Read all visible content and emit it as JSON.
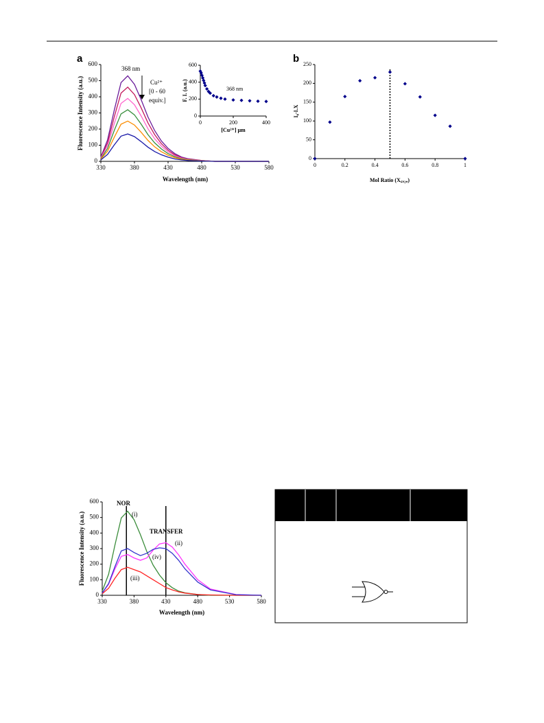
{
  "chart_data": [
    {
      "type": "line",
      "panel_label": "a",
      "ylabel": "Fluorescence Intensity (a.u.)",
      "xlabel": "Wavelength (nm)",
      "x": [
        330,
        340,
        350,
        360,
        370,
        380,
        390,
        400,
        410,
        420,
        430,
        440,
        450,
        460,
        480,
        500,
        540,
        580
      ],
      "series": [
        {
          "color": "#6a1b9a",
          "values": [
            27,
            133,
            318,
            488,
            530,
            477,
            382,
            276,
            191,
            127,
            80,
            48,
            27,
            16,
            5,
            0,
            0,
            0
          ]
        },
        {
          "color": "#c2185b",
          "values": [
            23,
            115,
            276,
            423,
            460,
            414,
            331,
            239,
            166,
            110,
            69,
            41,
            23,
            14,
            5,
            0,
            0,
            0
          ]
        },
        {
          "color": "#ff66cc",
          "values": [
            20,
            98,
            234,
            359,
            390,
            351,
            281,
            203,
            140,
            94,
            59,
            35,
            20,
            12,
            4,
            0,
            0,
            0
          ]
        },
        {
          "color": "#388e3c",
          "values": [
            16,
            80,
            192,
            294,
            320,
            288,
            230,
            166,
            115,
            77,
            48,
            29,
            16,
            10,
            3,
            0,
            0,
            0
          ]
        },
        {
          "color": "#fb8c00",
          "values": [
            13,
            63,
            150,
            230,
            250,
            225,
            180,
            130,
            90,
            60,
            38,
            23,
            13,
            8,
            3,
            0,
            0,
            0
          ]
        },
        {
          "color": "#1a1aa8",
          "values": [
            9,
            43,
            102,
            156,
            170,
            153,
            122,
            88,
            61,
            41,
            26,
            15,
            9,
            5,
            2,
            0,
            0,
            0
          ]
        }
      ],
      "xlim": [
        330,
        580
      ],
      "xticks": [
        330,
        380,
        430,
        480,
        530,
        580
      ],
      "ylim": [
        0,
        600
      ],
      "yticks": [
        0,
        100,
        200,
        300,
        400,
        500,
        600
      ],
      "annotations": [
        "368 nm",
        "Cu²⁺",
        "[0 - 60",
        "equiv.]"
      ]
    },
    {
      "type": "scatter",
      "ylabel": "F. I. (a.u.)",
      "xlabel": "[Cu²⁺] μm",
      "color": "#00008b",
      "x": [
        0,
        5,
        10,
        15,
        20,
        25,
        30,
        40,
        50,
        60,
        80,
        100,
        125,
        150,
        200,
        250,
        300,
        350,
        400
      ],
      "values": [
        530,
        510,
        480,
        450,
        420,
        390,
        360,
        320,
        290,
        270,
        240,
        225,
        210,
        200,
        190,
        185,
        180,
        175,
        172
      ],
      "xlim": [
        0,
        400
      ],
      "xticks": [
        0,
        200,
        400
      ],
      "ylim": [
        0,
        600
      ],
      "yticks": [
        0,
        200,
        400,
        600
      ],
      "annotations": [
        "368 nm"
      ]
    },
    {
      "type": "scatter",
      "panel_label": "b",
      "ylabel": "I₀-I.X",
      "xlabel": "Mol Ratio (X꜀ᵤ₂₊)",
      "color": "#00008b",
      "x": [
        0,
        0.1,
        0.2,
        0.3,
        0.4,
        0.5,
        0.6,
        0.7,
        0.8,
        0.9,
        1
      ],
      "values": [
        0,
        97,
        165,
        207,
        215,
        230,
        199,
        164,
        115,
        86,
        0
      ],
      "xlim": [
        0,
        1
      ],
      "xticks": [
        0,
        0.2,
        0.4,
        0.6,
        0.8,
        1
      ],
      "ylim": [
        0,
        250
      ],
      "yticks": [
        0,
        50,
        100,
        150,
        200,
        250
      ],
      "reference_lines_x": [
        0.5
      ],
      "reference_line_style": "dotted"
    },
    {
      "type": "line",
      "ylabel": "Fluorescence Intensity (a.u.)",
      "xlabel": "Wavelength (nm)",
      "x": [
        330,
        340,
        350,
        360,
        370,
        380,
        390,
        400,
        410,
        420,
        430,
        440,
        450,
        460,
        480,
        500,
        540,
        580
      ],
      "series": [
        {
          "color": "#3a8c3a",
          "values": [
            27,
            135,
            324,
            497,
            540,
            486,
            389,
            281,
            194,
            130,
            81,
            49,
            27,
            16,
            5,
            0,
            0,
            0
          ]
        },
        {
          "color": "#ff33ff",
          "values": [
            15,
            70,
            170,
            250,
            262,
            240,
            225,
            240,
            290,
            330,
            338,
            310,
            260,
            200,
            100,
            40,
            5,
            0
          ]
        },
        {
          "color": "#ff2222",
          "values": [
            10,
            45,
            110,
            165,
            180,
            165,
            150,
            125,
            100,
            75,
            50,
            35,
            22,
            14,
            5,
            2,
            0,
            0
          ]
        },
        {
          "color": "#3333cc",
          "values": [
            15,
            75,
            185,
            285,
            300,
            275,
            255,
            270,
            295,
            305,
            300,
            270,
            225,
            170,
            85,
            35,
            4,
            0
          ]
        }
      ],
      "xlim": [
        330,
        580
      ],
      "xticks": [
        330,
        380,
        430,
        480,
        530,
        580
      ],
      "ylim": [
        0,
        600
      ],
      "yticks": [
        0,
        100,
        200,
        300,
        400,
        500,
        600
      ],
      "reference_lines_x": [
        368,
        430
      ],
      "reference_line_style": "solid",
      "annotations": [
        "NOR",
        "(i)",
        "TRANSFER",
        "(ii)",
        "(iv)",
        "(iii)"
      ]
    }
  ]
}
